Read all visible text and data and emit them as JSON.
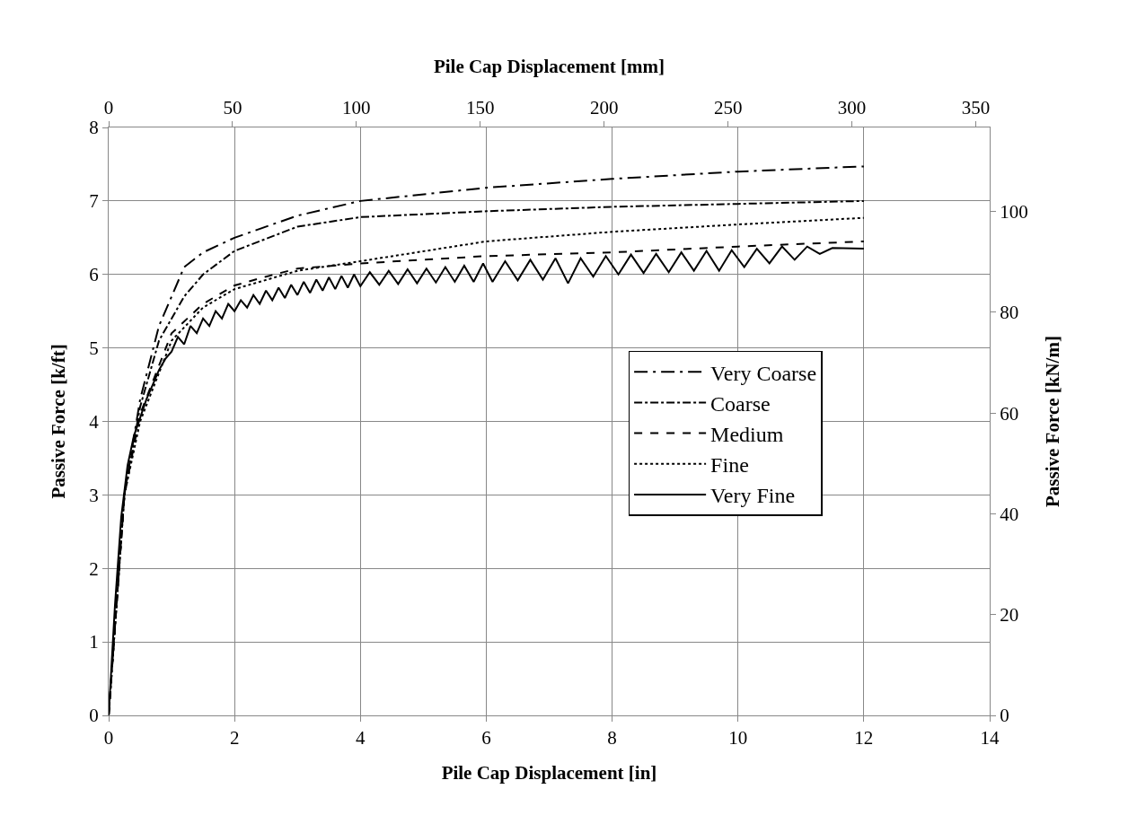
{
  "chart_data": {
    "type": "line",
    "xlabel": "Pile Cap Displacement [in]",
    "x2label": "Pile Cap Displacement [mm]",
    "ylabel": "Passive Force [k/ft]",
    "y2label": "Passive Force [kN/m]",
    "xlim": [
      0,
      14
    ],
    "xticks": [
      0,
      2,
      4,
      6,
      8,
      10,
      12,
      14
    ],
    "x2lim": [
      0,
      355.6
    ],
    "x2ticks": [
      0,
      50,
      100,
      150,
      200,
      250,
      300,
      350
    ],
    "ylim": [
      0,
      8
    ],
    "yticks": [
      0,
      1,
      2,
      3,
      4,
      5,
      6,
      7,
      8
    ],
    "y2lim": [
      0,
      116.7
    ],
    "y2ticks": [
      0,
      20,
      40,
      60,
      80,
      100
    ],
    "grid": true,
    "legend": "right",
    "marker": "none",
    "series": [
      {
        "name": "Very Coarse",
        "color": "#000000",
        "line_style": "longdashdot",
        "x": [
          0,
          0.1,
          0.25,
          0.5,
          0.8,
          1.2,
          1.5,
          2,
          3,
          4,
          6,
          8,
          10,
          12
        ],
        "values": [
          0,
          1.2,
          3,
          4.3,
          5.3,
          6.1,
          6.3,
          6.5,
          6.8,
          7.0,
          7.18,
          7.3,
          7.4,
          7.47
        ]
      },
      {
        "name": "Coarse",
        "color": "#000000",
        "line_style": "dashdot",
        "x": [
          0,
          0.1,
          0.25,
          0.5,
          0.8,
          1.2,
          1.5,
          2,
          3,
          4,
          6,
          8,
          10,
          12
        ],
        "values": [
          0,
          1.2,
          3,
          4.2,
          5.1,
          5.7,
          6.0,
          6.32,
          6.65,
          6.78,
          6.86,
          6.92,
          6.96,
          7.0
        ]
      },
      {
        "name": "Medium",
        "color": "#000000",
        "line_style": "dashed",
        "x": [
          0,
          0.1,
          0.25,
          0.5,
          1,
          1.5,
          2,
          2.5,
          3,
          4,
          6,
          8,
          10,
          12
        ],
        "values": [
          0,
          1.2,
          3,
          4.1,
          5.2,
          5.6,
          5.85,
          5.97,
          6.08,
          6.15,
          6.25,
          6.3,
          6.38,
          6.45
        ]
      },
      {
        "name": "Fine",
        "color": "#000000",
        "line_style": "dotted",
        "x": [
          0,
          0.1,
          0.25,
          0.5,
          1,
          1.5,
          2,
          3,
          4,
          6,
          8,
          10,
          12
        ],
        "values": [
          0,
          1.2,
          3,
          4.0,
          5.1,
          5.55,
          5.8,
          6.05,
          6.18,
          6.45,
          6.58,
          6.68,
          6.77
        ]
      },
      {
        "name": "Very Fine",
        "color": "#000000",
        "line_style": "solid",
        "x": [
          0,
          0.1,
          0.2,
          0.3,
          0.4,
          0.5,
          0.6,
          0.7,
          0.8,
          0.9,
          1.0,
          1.1,
          1.2,
          1.3,
          1.4,
          1.5,
          1.6,
          1.7,
          1.8,
          1.9,
          2.0,
          2.1,
          2.2,
          2.3,
          2.4,
          2.5,
          2.6,
          2.7,
          2.8,
          2.9,
          3.0,
          3.1,
          3.2,
          3.3,
          3.4,
          3.5,
          3.6,
          3.7,
          3.8,
          3.9,
          4.0,
          4.15,
          4.3,
          4.45,
          4.6,
          4.75,
          4.9,
          5.05,
          5.2,
          5.35,
          5.5,
          5.65,
          5.8,
          5.95,
          6.1,
          6.3,
          6.5,
          6.7,
          6.9,
          7.1,
          7.3,
          7.5,
          7.7,
          7.9,
          8.1,
          8.3,
          8.5,
          8.7,
          8.9,
          9.1,
          9.3,
          9.5,
          9.7,
          9.9,
          10.1,
          10.3,
          10.5,
          10.7,
          10.9,
          11.1,
          11.3,
          11.5,
          12
        ],
        "values": [
          0,
          1.5,
          2.7,
          3.4,
          3.8,
          4.05,
          4.3,
          4.5,
          4.7,
          4.85,
          4.95,
          5.15,
          5.05,
          5.3,
          5.2,
          5.4,
          5.3,
          5.5,
          5.4,
          5.6,
          5.5,
          5.65,
          5.55,
          5.72,
          5.6,
          5.78,
          5.65,
          5.82,
          5.68,
          5.86,
          5.72,
          5.9,
          5.75,
          5.93,
          5.78,
          5.96,
          5.8,
          5.98,
          5.82,
          6.0,
          5.84,
          6.03,
          5.86,
          6.05,
          5.87,
          6.07,
          5.88,
          6.08,
          5.89,
          6.1,
          5.9,
          6.12,
          5.9,
          6.15,
          5.9,
          6.18,
          5.92,
          6.2,
          5.93,
          6.22,
          5.88,
          6.22,
          5.97,
          6.25,
          6.0,
          6.27,
          6.02,
          6.28,
          6.03,
          6.3,
          6.05,
          6.32,
          6.05,
          6.33,
          6.1,
          6.35,
          6.15,
          6.38,
          6.2,
          6.38,
          6.28,
          6.36,
          6.35
        ]
      }
    ]
  }
}
